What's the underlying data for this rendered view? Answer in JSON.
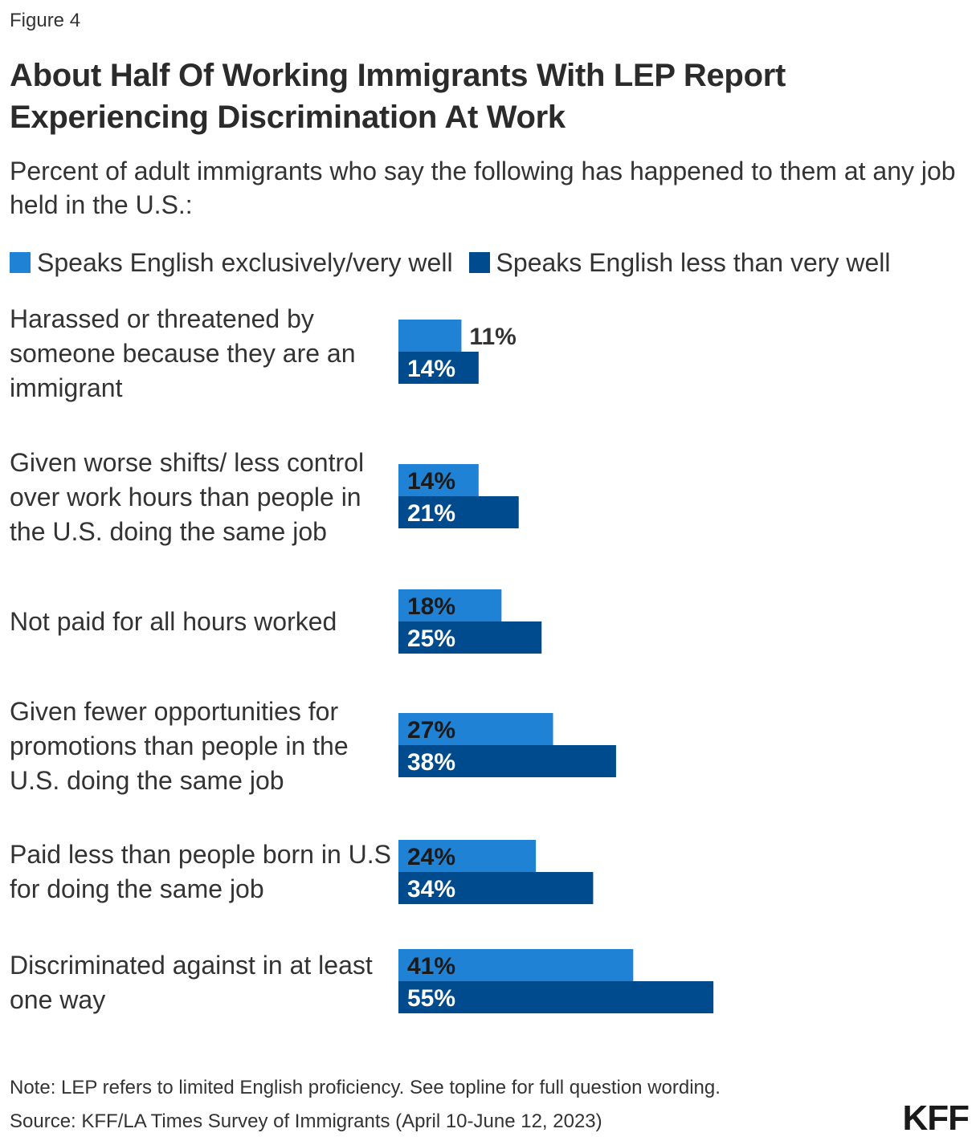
{
  "figure_label": "Figure 4",
  "title": "About Half Of Working Immigrants With LEP Report Experiencing Discrimination At Work",
  "subtitle": "Percent of adult immigrants who say the following has happened to them at any job held in the U.S.:",
  "colors": {
    "series_1": "#1f82d4",
    "series_2": "#004b8d",
    "label_dark": "#1a1a1a",
    "label_light": "#ffffff",
    "label_outside": "#333333"
  },
  "chart_data": {
    "type": "bar",
    "orientation": "horizontal",
    "categories": [
      "Harassed or threatened by someone because they are an immigrant",
      "Given worse shifts/ less control over work hours than people in the U.S. doing the same job",
      "Not paid for all hours worked",
      "Given fewer opportunities for promotions than people in the U.S. doing the same job",
      "Paid less than people born in U.S for doing the same job",
      "Discriminated against in at least one way"
    ],
    "series": [
      {
        "name": "Speaks English exclusively/very well",
        "values": [
          11,
          14,
          18,
          27,
          24,
          41
        ],
        "labels": [
          "11%",
          "14%",
          "18%",
          "27%",
          "24%",
          "41%"
        ]
      },
      {
        "name": "Speaks English less than very well",
        "values": [
          14,
          21,
          25,
          38,
          34,
          55
        ],
        "labels": [
          "14%",
          "21%",
          "25%",
          "38%",
          "34%",
          "55%"
        ]
      }
    ],
    "xlim": [
      0,
      100
    ],
    "grid": false,
    "legend_position": "top-left"
  },
  "note": "Note: LEP refers to limited English proficiency. See topline for full question wording.",
  "source": "Source: KFF/LA Times Survey of Immigrants (April 10-June 12, 2023)",
  "logo_text": "KFF"
}
